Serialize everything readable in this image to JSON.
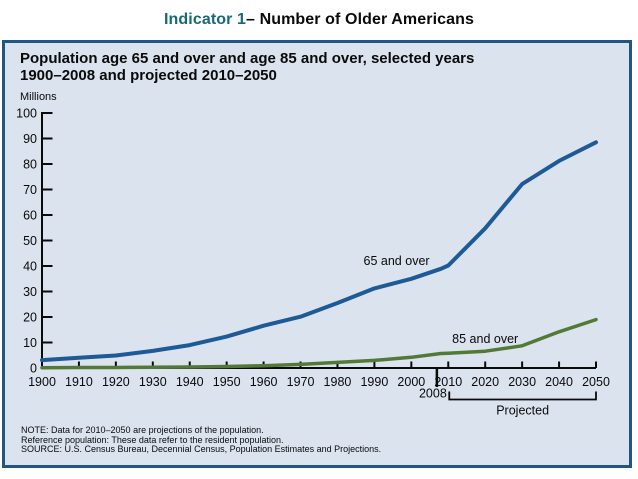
{
  "page": {
    "title_accent": "Indicator 1",
    "title_rest": "– Number of Older Americans"
  },
  "panel": {
    "title_line1": "Population age 65 and over and age 85 and over, selected years",
    "title_line2": "1900–2008 and projected 2010–2050",
    "unit_label": "Millions",
    "notes": [
      "NOTE: Data for 2010–2050 are projections of the population.",
      "Reference population: These data refer to the resident population.",
      "SOURCE: U.S. Census Bureau, Decennial Census, Population Estimates and Projections."
    ]
  },
  "colors": {
    "accent_teal": "#17697a",
    "panel_bg": "#dbe3ef",
    "panel_border": "#24557f",
    "axis": "#0a0a0a",
    "series_65_and_over": "#1d5a96",
    "series_85_and_over": "#527a36"
  },
  "chart_data": {
    "type": "line",
    "title": "Population age 65 and over and age 85 and over, selected years 1900–2008 and projected 2010–2050",
    "xlabel": "",
    "ylabel": "Millions",
    "xlim": [
      1900,
      2050
    ],
    "ylim": [
      0,
      100
    ],
    "grid": false,
    "legend_position": "inline-labels",
    "x_ticks": [
      1900,
      1910,
      1920,
      1930,
      1940,
      1950,
      1960,
      1970,
      1980,
      1990,
      2000,
      2010,
      2020,
      2030,
      2040,
      2050
    ],
    "y_ticks": [
      0,
      10,
      20,
      30,
      40,
      50,
      60,
      70,
      80,
      90,
      100
    ],
    "extra_x_tick": {
      "year": 2008,
      "label": "2008"
    },
    "x": [
      1900,
      1910,
      1920,
      1930,
      1940,
      1950,
      1960,
      1970,
      1980,
      1990,
      2000,
      2008,
      2010,
      2020,
      2030,
      2040,
      2050
    ],
    "series": [
      {
        "name": "65 and over",
        "color": "#1d5a96",
        "stroke_width": 4,
        "values": [
          3.1,
          4.0,
          4.9,
          6.7,
          9.0,
          12.3,
          16.6,
          20.1,
          25.5,
          31.2,
          35.0,
          38.9,
          40.2,
          54.8,
          72.1,
          81.2,
          88.5
        ],
        "label_anchor": {
          "year": 1996,
          "value": 40.4
        }
      },
      {
        "name": "85 and over",
        "color": "#527a36",
        "stroke_width": 3.5,
        "values": [
          0.1,
          0.2,
          0.2,
          0.3,
          0.4,
          0.6,
          0.9,
          1.4,
          2.2,
          3.0,
          4.2,
          5.7,
          5.8,
          6.6,
          8.7,
          14.2,
          19.0
        ],
        "label_anchor": {
          "year": 2020,
          "value": 9.8
        }
      }
    ],
    "projected_bracket": {
      "label": "Projected",
      "from_year": 2010,
      "to_year": 2050
    }
  }
}
